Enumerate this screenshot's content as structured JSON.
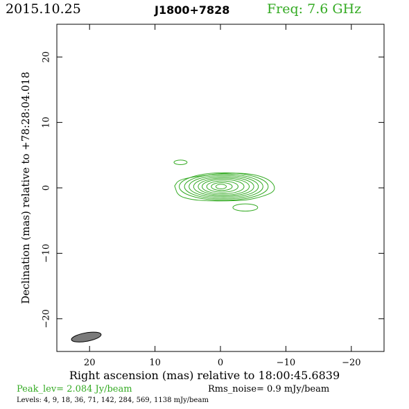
{
  "header": {
    "date": "2015.10.25",
    "source": "J1800+7828",
    "frequency": "Freq: 7.6 GHz"
  },
  "footer": {
    "peak": "Peak_lev=  2.084 Jy/beam",
    "rms": "Rms_noise=  0.9 mJy/beam",
    "levels": "Levels:   4,   9,  18,  36,  71, 142, 284, 569, 1138 mJy/beam"
  },
  "colors": {
    "contour": "#33aa22",
    "beam": "#7a7a7a",
    "axis": "#000000"
  },
  "chart_data": {
    "type": "contour",
    "xlabel": "Right ascension (mas) relative to 18:00:45.6839",
    "ylabel": "Declination (mas) relative to +78:28:04.018",
    "xlim": [
      25,
      -25
    ],
    "ylim": [
      -25,
      25
    ],
    "xticks": [
      20,
      10,
      0,
      -10,
      -20
    ],
    "yticks": [
      20,
      10,
      0,
      -10,
      -20
    ],
    "xtick_labels": [
      "20",
      "10",
      "0",
      "−10",
      "−20"
    ],
    "ytick_labels": [
      "20",
      "10",
      "0",
      "−10",
      "−20"
    ],
    "contour_levels_mJy": [
      4,
      9,
      18,
      36,
      71,
      142,
      284,
      569,
      1138
    ],
    "contours": [
      {
        "cx": -0.5,
        "cy": 0.2,
        "rx": 6.8,
        "ry": 2.1
      },
      {
        "cx": -0.5,
        "cy": 0.2,
        "rx": 6.0,
        "ry": 1.9
      },
      {
        "cx": -0.5,
        "cy": 0.2,
        "rx": 5.3,
        "ry": 1.7
      },
      {
        "cx": -0.5,
        "cy": 0.2,
        "rx": 4.6,
        "ry": 1.5
      },
      {
        "cx": -0.5,
        "cy": 0.2,
        "rx": 3.9,
        "ry": 1.3
      },
      {
        "cx": -0.4,
        "cy": 0.2,
        "rx": 3.2,
        "ry": 1.1
      },
      {
        "cx": -0.3,
        "cy": 0.2,
        "rx": 2.4,
        "ry": 0.85
      },
      {
        "cx": -0.2,
        "cy": 0.2,
        "rx": 1.6,
        "ry": 0.6
      },
      {
        "cx": -0.1,
        "cy": 0.2,
        "rx": 0.8,
        "ry": 0.35
      }
    ],
    "outer_contour": [
      [
        7.0,
        0.3
      ],
      [
        6.5,
        -1.2
      ],
      [
        4.5,
        -1.8
      ],
      [
        2,
        -2.0
      ],
      [
        -1,
        -2.0
      ],
      [
        -4,
        -1.9
      ],
      [
        -6.5,
        -1.3
      ],
      [
        -8.2,
        -0.6
      ],
      [
        -8.3,
        0.4
      ],
      [
        -7.2,
        1.4
      ],
      [
        -5,
        2.1
      ],
      [
        -2,
        2.3
      ],
      [
        1,
        2.1
      ],
      [
        4,
        1.7
      ],
      [
        6.4,
        1.2
      ]
    ],
    "extra_contours": [
      {
        "cx": 6.1,
        "cy": 3.9,
        "rx": 1.0,
        "ry": 0.35
      },
      {
        "cx": -3.8,
        "cy": -3.0,
        "rx": 1.9,
        "ry": 0.55
      }
    ],
    "beam": {
      "cx": 20.5,
      "cy": -22.8,
      "major": 4.6,
      "minor": 1.3,
      "pa_deg": 80
    }
  }
}
